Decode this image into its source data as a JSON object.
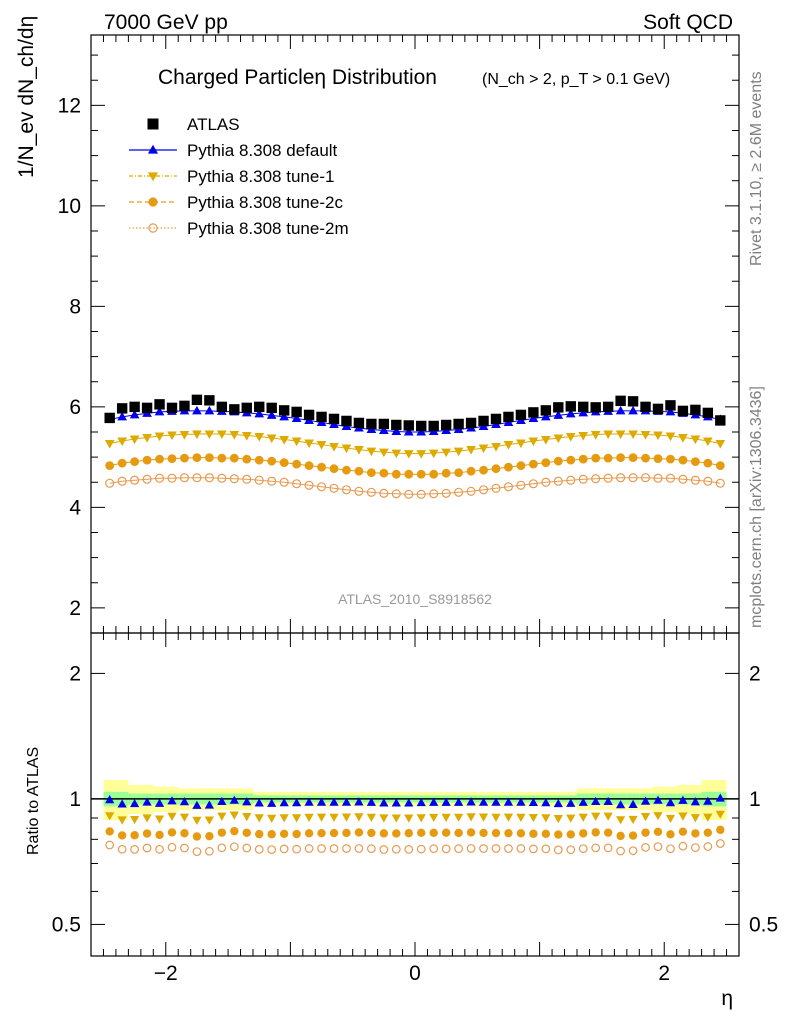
{
  "header": {
    "left": "7000 GeV pp",
    "right": "Soft QCD"
  },
  "side_labels": {
    "rivet": "Rivet 3.1.10, ≥ 2.6M events",
    "mcplots": "mcplots.cern.ch [arXiv:1306.3436]"
  },
  "watermark": "ATLAS_2010_S8918562",
  "chart_data": {
    "type": "scatter",
    "title": "Charged Particleη Distribution",
    "title_selection": "(N_ch > 2, p_T > 0.1 GeV)",
    "xlabel": "η",
    "xlim": [
      -2.6,
      2.6
    ],
    "main": {
      "ylabel": "1/N_ev dN_ch/dη",
      "ylim": [
        1.5,
        13.4
      ],
      "ytick_labels": [
        "2",
        "4",
        "6",
        "8",
        "10",
        "12"
      ]
    },
    "ratio": {
      "ylabel": "Ratio to ATLAS",
      "ylim": [
        0.42,
        2.5
      ],
      "ytick_labels": [
        "0.5",
        "1",
        "2"
      ]
    },
    "xtick_labels": [
      "−2",
      "0",
      "2"
    ],
    "x": [
      -2.45,
      -2.35,
      -2.25,
      -2.15,
      -2.05,
      -1.95,
      -1.85,
      -1.75,
      -1.65,
      -1.55,
      -1.45,
      -1.35,
      -1.25,
      -1.15,
      -1.05,
      -0.95,
      -0.85,
      -0.75,
      -0.65,
      -0.55,
      -0.45,
      -0.35,
      -0.25,
      -0.15,
      -0.05,
      0.05,
      0.15,
      0.25,
      0.35,
      0.45,
      0.55,
      0.65,
      0.75,
      0.85,
      0.95,
      1.05,
      1.15,
      1.25,
      1.35,
      1.45,
      1.55,
      1.65,
      1.75,
      1.85,
      1.95,
      2.05,
      2.15,
      2.25,
      2.35,
      2.45
    ],
    "series": [
      {
        "name": "ATLAS",
        "color": "#000000",
        "marker": "square",
        "values": [
          5.78,
          5.97,
          6.0,
          5.98,
          6.05,
          5.98,
          6.02,
          6.14,
          6.13,
          6.0,
          5.95,
          5.98,
          6.0,
          5.98,
          5.93,
          5.9,
          5.84,
          5.8,
          5.76,
          5.72,
          5.68,
          5.66,
          5.66,
          5.64,
          5.63,
          5.62,
          5.62,
          5.64,
          5.66,
          5.68,
          5.72,
          5.76,
          5.8,
          5.84,
          5.89,
          5.93,
          5.99,
          6.01,
          6.0,
          5.99,
          6.0,
          6.12,
          6.11,
          6.0,
          5.96,
          6.03,
          5.92,
          5.94,
          5.88,
          5.73
        ],
        "ratio_band": {
          "stat": [
            0.04,
            0.04,
            0.03,
            0.03,
            0.03,
            0.03,
            0.03,
            0.03,
            0.03,
            0.03,
            0.03,
            0.03,
            0.02,
            0.02,
            0.02,
            0.02,
            0.02,
            0.02,
            0.02,
            0.02,
            0.02,
            0.02,
            0.02,
            0.02,
            0.02,
            0.02,
            0.02,
            0.02,
            0.02,
            0.02,
            0.02,
            0.02,
            0.02,
            0.02,
            0.02,
            0.02,
            0.02,
            0.02,
            0.03,
            0.03,
            0.03,
            0.03,
            0.03,
            0.03,
            0.03,
            0.03,
            0.03,
            0.03,
            0.04,
            0.04
          ],
          "total": [
            0.11,
            0.11,
            0.08,
            0.08,
            0.07,
            0.07,
            0.06,
            0.06,
            0.06,
            0.06,
            0.06,
            0.06,
            0.04,
            0.04,
            0.04,
            0.04,
            0.04,
            0.04,
            0.04,
            0.04,
            0.04,
            0.04,
            0.04,
            0.04,
            0.04,
            0.04,
            0.04,
            0.04,
            0.04,
            0.04,
            0.04,
            0.04,
            0.04,
            0.04,
            0.04,
            0.04,
            0.04,
            0.04,
            0.06,
            0.06,
            0.06,
            0.06,
            0.06,
            0.06,
            0.07,
            0.07,
            0.08,
            0.08,
            0.11,
            0.11
          ]
        }
      },
      {
        "name": "Pythia 8.308 default",
        "color": "#0000ee",
        "marker": "triangle-up",
        "values": [
          5.75,
          5.8,
          5.84,
          5.87,
          5.9,
          5.91,
          5.92,
          5.92,
          5.92,
          5.91,
          5.9,
          5.88,
          5.86,
          5.83,
          5.8,
          5.77,
          5.73,
          5.69,
          5.65,
          5.61,
          5.58,
          5.55,
          5.53,
          5.51,
          5.5,
          5.5,
          5.51,
          5.53,
          5.55,
          5.58,
          5.61,
          5.65,
          5.69,
          5.73,
          5.77,
          5.8,
          5.83,
          5.86,
          5.88,
          5.9,
          5.91,
          5.92,
          5.92,
          5.92,
          5.91,
          5.9,
          5.87,
          5.84,
          5.8,
          5.75
        ]
      },
      {
        "name": "Pythia 8.308 tune-1",
        "color": "#ddaa00",
        "marker": "triangle-down",
        "values": [
          5.27,
          5.32,
          5.36,
          5.39,
          5.42,
          5.44,
          5.45,
          5.46,
          5.46,
          5.46,
          5.45,
          5.43,
          5.41,
          5.38,
          5.35,
          5.32,
          5.28,
          5.25,
          5.21,
          5.18,
          5.15,
          5.12,
          5.1,
          5.08,
          5.07,
          5.07,
          5.08,
          5.1,
          5.12,
          5.15,
          5.18,
          5.21,
          5.25,
          5.28,
          5.32,
          5.35,
          5.38,
          5.41,
          5.43,
          5.45,
          5.46,
          5.46,
          5.46,
          5.45,
          5.44,
          5.42,
          5.39,
          5.36,
          5.32,
          5.27
        ]
      },
      {
        "name": "Pythia 8.308 tune-2c",
        "color": "#e69a10",
        "marker": "circle",
        "values": [
          4.83,
          4.88,
          4.91,
          4.94,
          4.96,
          4.97,
          4.98,
          4.99,
          4.99,
          4.98,
          4.98,
          4.96,
          4.94,
          4.92,
          4.89,
          4.86,
          4.83,
          4.8,
          4.77,
          4.74,
          4.72,
          4.69,
          4.68,
          4.66,
          4.66,
          4.66,
          4.66,
          4.68,
          4.69,
          4.72,
          4.74,
          4.77,
          4.8,
          4.83,
          4.86,
          4.89,
          4.92,
          4.94,
          4.96,
          4.98,
          4.98,
          4.99,
          4.99,
          4.98,
          4.97,
          4.96,
          4.94,
          4.91,
          4.88,
          4.83
        ]
      },
      {
        "name": "Pythia 8.308 tune-2m",
        "color": "#e69a50",
        "marker": "open-circle",
        "values": [
          4.48,
          4.52,
          4.54,
          4.56,
          4.58,
          4.58,
          4.59,
          4.59,
          4.59,
          4.58,
          4.57,
          4.56,
          4.54,
          4.52,
          4.5,
          4.47,
          4.44,
          4.41,
          4.38,
          4.35,
          4.32,
          4.3,
          4.28,
          4.27,
          4.26,
          4.26,
          4.27,
          4.28,
          4.3,
          4.32,
          4.35,
          4.38,
          4.41,
          4.44,
          4.47,
          4.5,
          4.52,
          4.54,
          4.56,
          4.57,
          4.58,
          4.59,
          4.59,
          4.59,
          4.58,
          4.58,
          4.56,
          4.54,
          4.52,
          4.48
        ]
      }
    ]
  }
}
